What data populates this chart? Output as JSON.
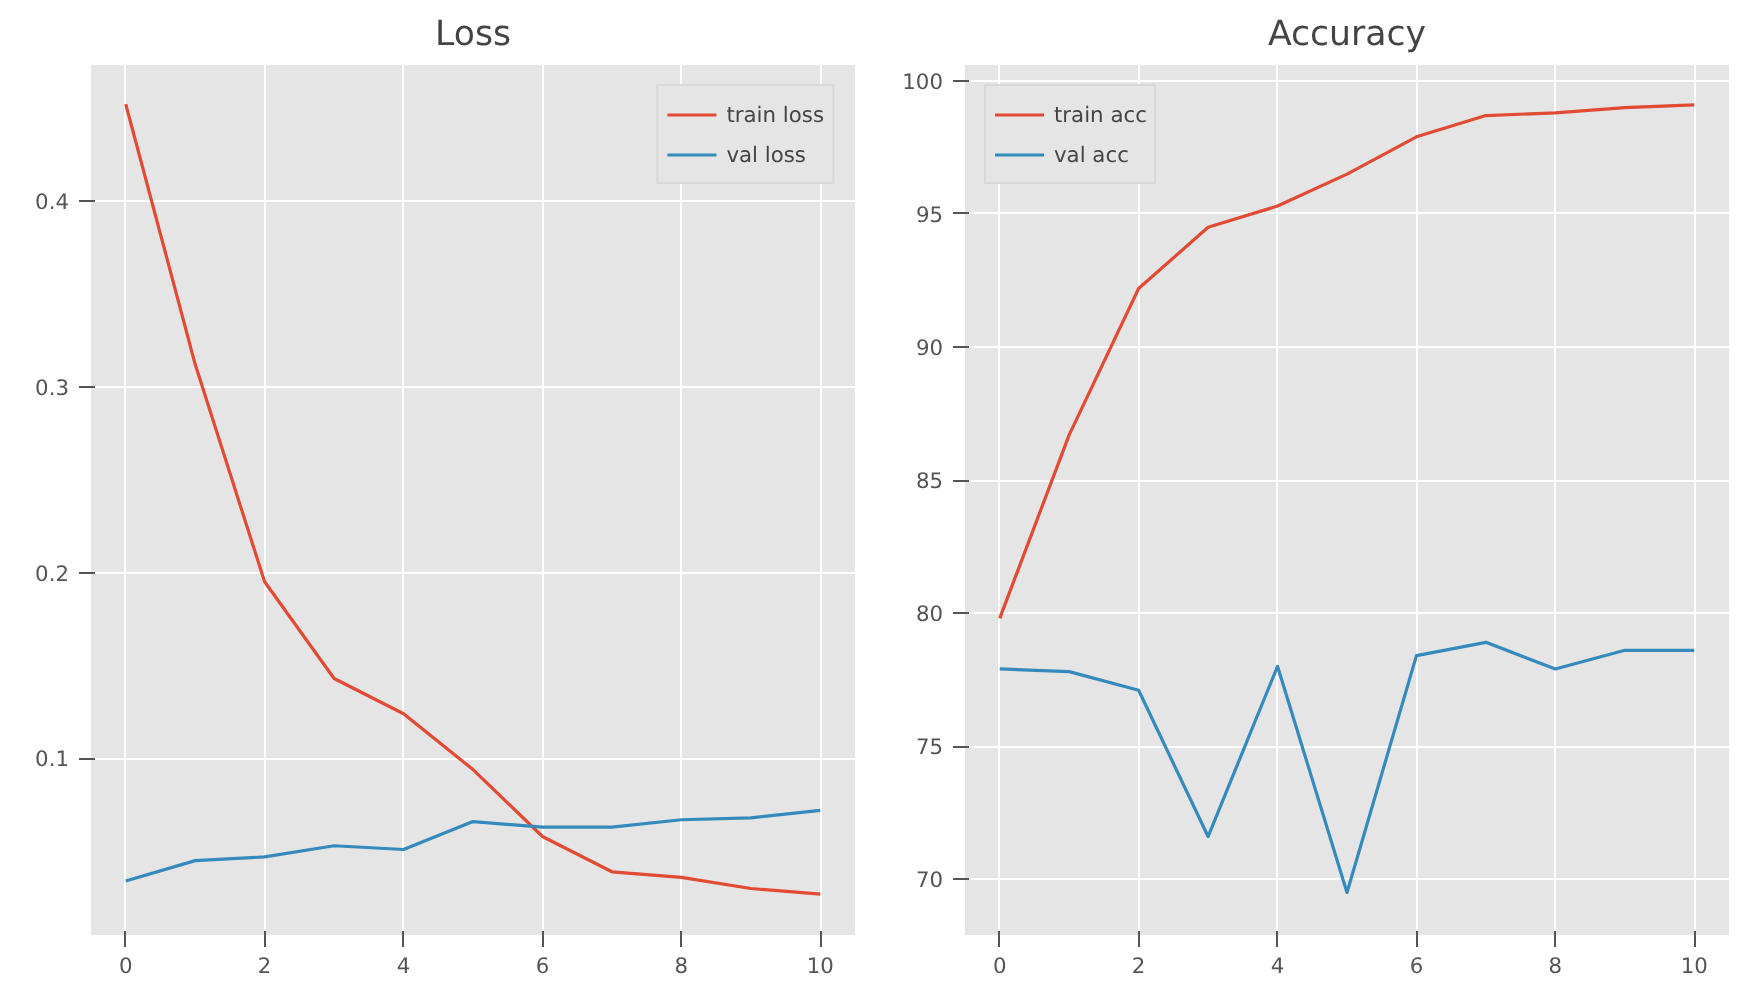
{
  "chart_data": [
    {
      "type": "line",
      "title": "Loss",
      "x": [
        0,
        1,
        2,
        3,
        4,
        5,
        6,
        7,
        8,
        9,
        10
      ],
      "xlim": [
        -0.5,
        10.5
      ],
      "ylim": [
        0.005,
        0.473
      ],
      "xticks": [
        0,
        2,
        4,
        6,
        8,
        10
      ],
      "yticks": [
        0.1,
        0.2,
        0.3,
        0.4
      ],
      "grid": true,
      "legend": "top right",
      "series": [
        {
          "name": "train loss",
          "color": "#e24a33",
          "values": [
            0.452,
            0.312,
            0.195,
            0.143,
            0.124,
            0.094,
            0.058,
            0.039,
            0.036,
            0.03,
            0.027
          ]
        },
        {
          "name": "val loss",
          "color": "#348abd",
          "values": [
            0.034,
            0.045,
            0.047,
            0.053,
            0.051,
            0.066,
            0.063,
            0.063,
            0.067,
            0.068,
            0.072
          ]
        }
      ]
    },
    {
      "type": "line",
      "title": "Accuracy",
      "x": [
        0,
        1,
        2,
        3,
        4,
        5,
        6,
        7,
        8,
        9,
        10
      ],
      "xlim": [
        -0.5,
        10.5
      ],
      "ylim": [
        67.9,
        100.6
      ],
      "xticks": [
        0,
        2,
        4,
        6,
        8,
        10
      ],
      "yticks": [
        70,
        75,
        80,
        85,
        90,
        95,
        100
      ],
      "grid": true,
      "legend": "top left",
      "series": [
        {
          "name": "train acc",
          "color": "#e24a33",
          "values": [
            79.8,
            86.7,
            92.2,
            94.5,
            95.3,
            96.5,
            97.9,
            98.7,
            98.8,
            99.0,
            99.1
          ]
        },
        {
          "name": "val acc",
          "color": "#348abd",
          "values": [
            77.9,
            77.8,
            77.1,
            71.6,
            78.0,
            69.5,
            78.4,
            78.9,
            77.9,
            78.6,
            78.6
          ]
        }
      ]
    }
  ]
}
